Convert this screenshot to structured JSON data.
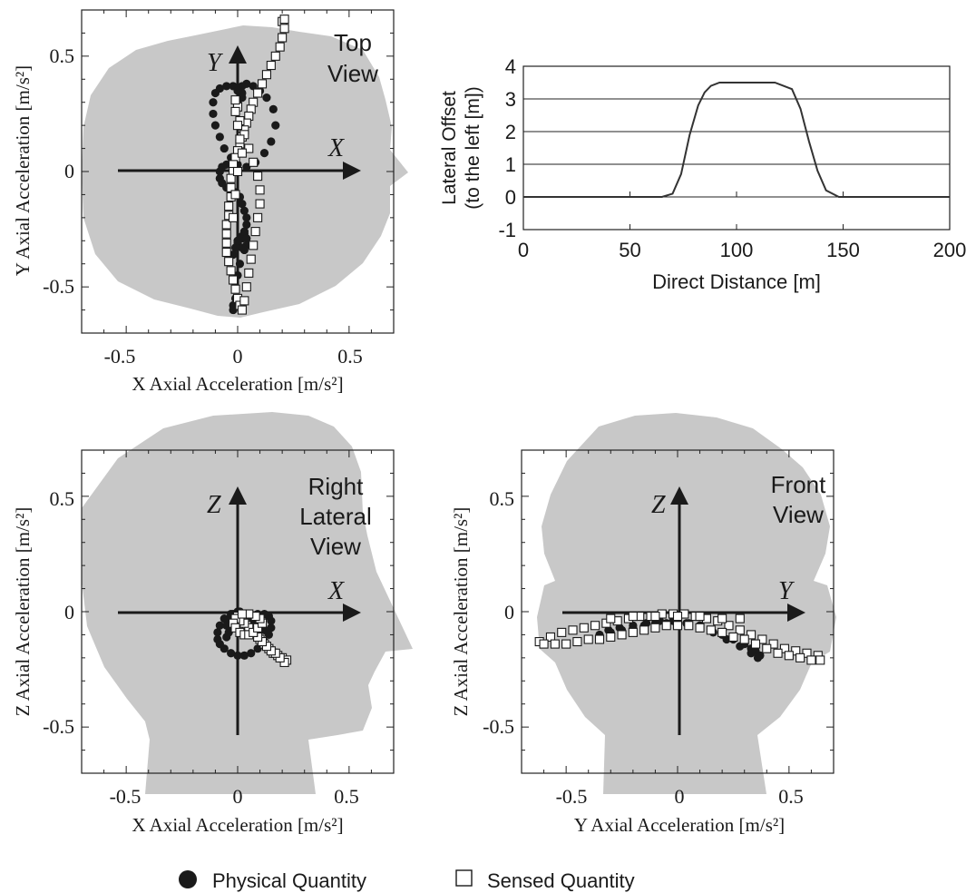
{
  "legend": {
    "physical_label": "Physical Quantity",
    "sensed_label": "Sensed Quantity",
    "placement": "bottom-center"
  },
  "colors": {
    "head_silhouette": "#c8c8c8",
    "ink": "#1a1a1a",
    "grid": "#222222"
  },
  "chart_data": [
    {
      "id": "top",
      "type": "scatter",
      "view_label": [
        "Top",
        "View"
      ],
      "xlabel": "X Axial Acceleration [m/s²]",
      "ylabel": "Y Axial Acceleration [m/s²]",
      "xlim": [
        -0.7,
        0.7
      ],
      "ylim": [
        -0.7,
        0.7
      ],
      "xticks": [
        -0.5,
        0,
        0.5
      ],
      "yticks": [
        -0.5,
        0,
        0.5
      ],
      "x_tick_labels": [
        "-0.5",
        "0",
        "0.5"
      ],
      "y_tick_labels": [
        "-0.5",
        "0",
        "0.5"
      ],
      "axis_arrows": {
        "horizontal": "X",
        "vertical": "Y"
      },
      "series": [
        {
          "name": "Physical Quantity",
          "marker": "filled-circle",
          "x": [
            0.0,
            0.02,
            0.02,
            0.0,
            -0.02,
            -0.05,
            -0.08,
            -0.1,
            -0.11,
            -0.11,
            -0.1,
            -0.08,
            -0.06,
            -0.03,
            0.0,
            0.04,
            0.08,
            0.12,
            0.15,
            0.17,
            0.16,
            0.13,
            0.1,
            0.07,
            0.04,
            0.02,
            0.0,
            -0.02,
            -0.05,
            -0.07,
            -0.08,
            -0.08,
            -0.07,
            -0.05,
            -0.03,
            -0.01,
            0.01,
            0.02,
            0.03,
            0.04,
            0.04,
            0.03,
            0.02,
            0.0,
            -0.01,
            -0.02,
            0.0,
            0.02,
            0.03,
            0.04,
            0.04,
            0.03,
            0.02,
            0.01,
            0.0,
            -0.01,
            -0.01,
            -0.02,
            -0.02,
            -0.01
          ],
          "y": [
            0.3,
            0.32,
            0.34,
            0.36,
            0.37,
            0.37,
            0.36,
            0.34,
            0.3,
            0.25,
            0.2,
            0.15,
            0.1,
            0.06,
            0.03,
            0.02,
            0.04,
            0.08,
            0.13,
            0.2,
            0.27,
            0.32,
            0.35,
            0.37,
            0.38,
            0.37,
            0.35,
            0.03,
            0.03,
            0.02,
            0.0,
            -0.03,
            -0.05,
            -0.07,
            -0.08,
            -0.09,
            -0.11,
            -0.14,
            -0.17,
            -0.2,
            -0.23,
            -0.26,
            -0.29,
            -0.31,
            -0.33,
            -0.36,
            -0.3,
            -0.28,
            -0.27,
            -0.29,
            -0.32,
            -0.34,
            -0.33,
            -0.4,
            -0.45,
            -0.5,
            -0.55,
            -0.58,
            -0.6,
            -0.5
          ]
        },
        {
          "name": "Sensed Quantity",
          "marker": "open-square",
          "x": [
            0.2,
            0.21,
            0.21,
            0.2,
            0.19,
            0.17,
            0.15,
            0.13,
            0.11,
            0.09,
            0.07,
            0.06,
            0.05,
            0.04,
            0.03,
            0.02,
            0.01,
            0.0,
            -0.01,
            -0.02,
            -0.02,
            -0.03,
            -0.03,
            -0.03,
            -0.04,
            -0.04,
            -0.05,
            -0.05,
            -0.05,
            -0.05,
            -0.04,
            -0.03,
            -0.02,
            -0.01,
            0.0,
            0.01,
            0.02,
            0.03,
            0.04,
            0.05,
            0.06,
            0.07,
            0.08,
            0.09,
            0.1,
            0.1,
            0.09,
            0.07,
            0.05,
            0.03,
            0.01,
            0.0,
            -0.01,
            -0.01,
            0.0,
            0.01,
            0.02,
            0.0,
            -0.01,
            -0.02
          ],
          "y": [
            0.65,
            0.66,
            0.62,
            0.58,
            0.54,
            0.5,
            0.46,
            0.42,
            0.38,
            0.34,
            0.3,
            0.27,
            0.24,
            0.21,
            0.18,
            0.15,
            0.12,
            0.09,
            0.06,
            0.03,
            0.0,
            -0.03,
            -0.07,
            -0.11,
            -0.15,
            -0.19,
            -0.23,
            -0.27,
            -0.31,
            -0.35,
            -0.39,
            -0.43,
            -0.47,
            -0.51,
            -0.55,
            -0.58,
            -0.6,
            -0.56,
            -0.5,
            -0.44,
            -0.38,
            -0.32,
            -0.26,
            -0.2,
            -0.14,
            -0.08,
            -0.02,
            0.04,
            0.1,
            0.16,
            0.22,
            0.28,
            0.31,
            0.26,
            0.2,
            0.14,
            0.08,
            0.0,
            -0.1,
            -0.2
          ]
        }
      ]
    },
    {
      "id": "path",
      "type": "line",
      "title": "",
      "xlabel": "Direct Distance [m]",
      "ylabel_lines": [
        "Lateral Offset",
        "(to the left [m])"
      ],
      "xlim": [
        0,
        200
      ],
      "ylim": [
        -1,
        4
      ],
      "xticks": [
        0,
        50,
        100,
        150,
        200
      ],
      "yticks": [
        -1,
        0,
        1,
        2,
        3,
        4
      ],
      "x_tick_labels": [
        "0",
        "50",
        "100",
        "150",
        "200"
      ],
      "y_tick_labels": [
        "-1",
        "0",
        "1",
        "2",
        "3",
        "4"
      ],
      "grid": "horizontal",
      "series": [
        {
          "name": "",
          "x": [
            0,
            50,
            65,
            70,
            74,
            78,
            82,
            85,
            88,
            92,
            100,
            110,
            118,
            122,
            126,
            130,
            134,
            138,
            142,
            148,
            155,
            200
          ],
          "y": [
            0,
            0,
            0,
            0.1,
            0.7,
            1.9,
            2.8,
            3.2,
            3.4,
            3.5,
            3.5,
            3.5,
            3.5,
            3.4,
            3.3,
            2.7,
            1.7,
            0.8,
            0.2,
            0,
            0,
            0
          ]
        }
      ]
    },
    {
      "id": "lateral",
      "type": "scatter",
      "view_label": [
        "Right",
        "Lateral",
        "View"
      ],
      "xlabel": "X Axial Acceleration [m/s²]",
      "ylabel": "Z Axial Acceleration [m/s²]",
      "xlim": [
        -0.7,
        0.7
      ],
      "ylim": [
        -0.7,
        0.7
      ],
      "xticks": [
        -0.5,
        0,
        0.5
      ],
      "yticks": [
        -0.5,
        0,
        0.5
      ],
      "x_tick_labels": [
        "-0.5",
        "0",
        "0.5"
      ],
      "y_tick_labels": [
        "-0.5",
        "0",
        "0.5"
      ],
      "axis_arrows": {
        "horizontal": "X",
        "vertical": "Z"
      },
      "series": [
        {
          "name": "Physical Quantity",
          "marker": "filled-circle",
          "x": [
            0.0,
            -0.03,
            -0.06,
            -0.08,
            -0.09,
            -0.09,
            -0.08,
            -0.06,
            -0.03,
            0.0,
            0.03,
            0.06,
            0.09,
            0.12,
            0.14,
            0.15,
            0.15,
            0.14,
            0.12,
            0.09,
            0.06,
            0.03,
            0.0,
            -0.02,
            -0.04,
            -0.05,
            -0.05,
            -0.04,
            -0.02,
            0.01,
            0.04,
            0.07,
            0.1,
            0.12
          ],
          "y": [
            0.0,
            -0.01,
            -0.03,
            -0.06,
            -0.09,
            -0.12,
            -0.14,
            -0.16,
            -0.18,
            -0.19,
            -0.19,
            -0.18,
            -0.16,
            -0.13,
            -0.1,
            -0.07,
            -0.04,
            -0.02,
            -0.01,
            -0.01,
            -0.02,
            -0.03,
            -0.05,
            -0.07,
            -0.09,
            -0.11,
            -0.06,
            -0.03,
            -0.01,
            0.0,
            -0.02,
            -0.04,
            -0.06,
            -0.08
          ]
        },
        {
          "name": "Sensed Quantity",
          "marker": "open-square",
          "x": [
            0.0,
            0.02,
            0.04,
            0.06,
            0.08,
            0.1,
            0.12,
            0.14,
            0.16,
            0.18,
            0.2,
            0.22,
            0.21,
            0.19,
            0.17,
            0.15,
            0.13,
            0.11,
            0.09,
            0.07,
            0.05,
            0.03,
            0.01,
            -0.01,
            -0.02,
            -0.01,
            0.01,
            0.03,
            0.05,
            0.07,
            0.09,
            0.11,
            0.1,
            0.08,
            0.05,
            0.02
          ],
          "y": [
            -0.02,
            -0.04,
            -0.06,
            -0.08,
            -0.1,
            -0.12,
            -0.14,
            -0.16,
            -0.18,
            -0.19,
            -0.2,
            -0.21,
            -0.22,
            -0.2,
            -0.18,
            -0.17,
            -0.15,
            -0.13,
            -0.11,
            -0.09,
            -0.07,
            -0.05,
            -0.04,
            -0.03,
            -0.05,
            -0.07,
            -0.09,
            -0.1,
            -0.1,
            -0.09,
            -0.07,
            -0.05,
            -0.03,
            -0.02,
            -0.01,
            -0.01
          ]
        }
      ]
    },
    {
      "id": "front",
      "type": "scatter",
      "view_label": [
        "Front",
        "View"
      ],
      "xlabel": "Y Axial Acceleration [m/s²]",
      "ylabel": "Z Axial Acceleration [m/s²]",
      "xlim": [
        -0.7,
        0.7
      ],
      "ylim": [
        -0.7,
        0.7
      ],
      "xticks": [
        -0.5,
        0,
        0.5
      ],
      "yticks": [
        -0.5,
        0,
        0.5
      ],
      "x_tick_labels": [
        "-0.5",
        "0",
        "0.5"
      ],
      "y_tick_labels": [
        "-0.5",
        "0",
        "0.5"
      ],
      "axis_arrows": {
        "horizontal": "Y",
        "vertical": "Z"
      },
      "series": [
        {
          "name": "Physical Quantity",
          "marker": "filled-circle",
          "x": [
            -0.35,
            -0.3,
            -0.25,
            -0.2,
            -0.15,
            -0.1,
            -0.05,
            0.0,
            0.05,
            0.1,
            0.15,
            0.2,
            0.25,
            0.3,
            0.33,
            0.35,
            0.37,
            0.36,
            0.33,
            0.28,
            0.22,
            0.16,
            0.1,
            0.04,
            -0.02,
            -0.08,
            -0.14,
            -0.2,
            -0.26,
            -0.31
          ],
          "y": [
            -0.1,
            -0.09,
            -0.08,
            -0.07,
            -0.06,
            -0.05,
            -0.05,
            -0.04,
            -0.05,
            -0.06,
            -0.08,
            -0.1,
            -0.12,
            -0.14,
            -0.16,
            -0.17,
            -0.19,
            -0.2,
            -0.18,
            -0.15,
            -0.12,
            -0.09,
            -0.07,
            -0.05,
            -0.04,
            -0.04,
            -0.05,
            -0.06,
            -0.07,
            -0.08
          ]
        },
        {
          "name": "Sensed Quantity",
          "marker": "open-square",
          "x": [
            -0.62,
            -0.57,
            -0.52,
            -0.47,
            -0.42,
            -0.37,
            -0.32,
            -0.27,
            -0.22,
            -0.17,
            -0.12,
            -0.07,
            -0.02,
            0.03,
            0.08,
            0.13,
            0.18,
            0.23,
            0.28,
            0.33,
            0.38,
            0.43,
            0.48,
            0.53,
            0.58,
            0.63,
            0.64,
            0.6,
            0.55,
            0.5,
            0.45,
            0.4,
            0.35,
            0.3,
            0.25,
            0.2,
            0.15,
            0.1,
            0.05,
            0.0,
            -0.05,
            -0.1,
            -0.15,
            -0.2,
            -0.25,
            -0.3,
            -0.35,
            -0.4,
            -0.45,
            -0.5,
            -0.55,
            -0.6,
            -0.3,
            -0.2,
            -0.1,
            0.0,
            0.1,
            0.2,
            0.28
          ],
          "y": [
            -0.13,
            -0.11,
            -0.09,
            -0.08,
            -0.07,
            -0.06,
            -0.05,
            -0.04,
            -0.03,
            -0.02,
            -0.02,
            -0.01,
            -0.01,
            -0.01,
            -0.02,
            -0.03,
            -0.04,
            -0.06,
            -0.08,
            -0.1,
            -0.12,
            -0.14,
            -0.16,
            -0.17,
            -0.18,
            -0.19,
            -0.21,
            -0.21,
            -0.2,
            -0.19,
            -0.18,
            -0.16,
            -0.14,
            -0.12,
            -0.11,
            -0.09,
            -0.08,
            -0.07,
            -0.06,
            -0.06,
            -0.06,
            -0.07,
            -0.08,
            -0.09,
            -0.1,
            -0.11,
            -0.12,
            -0.12,
            -0.13,
            -0.14,
            -0.14,
            -0.14,
            -0.03,
            -0.02,
            -0.02,
            -0.02,
            -0.02,
            -0.03,
            -0.03
          ]
        }
      ]
    }
  ]
}
